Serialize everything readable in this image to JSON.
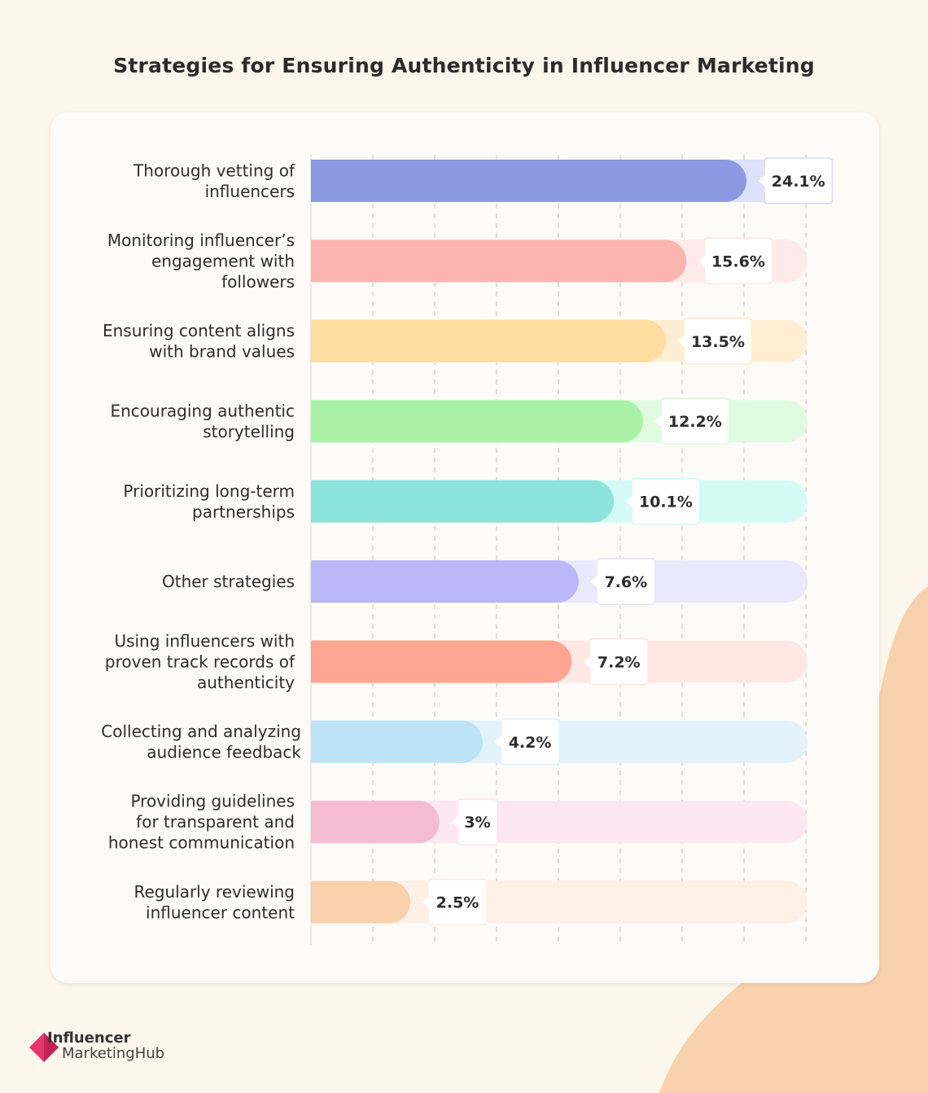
{
  "chart_data": {
    "type": "bar",
    "orientation": "horizontal",
    "title": "Strategies for Ensuring Authenticity in Influencer Marketing",
    "categories": [
      "Thorough vetting of influencers",
      "Monitoring influencer’s engagement with followers",
      "Ensuring content aligns with brand values",
      "Encouraging authentic storytelling",
      "Prioritizing long-term partnerships",
      "Other strategies",
      "Using influencers with proven track records of authenticity",
      "Collecting and analyzing audience feedback",
      "Providing guidelines for transparent and honest communication",
      "Regularly reviewing influencer content"
    ],
    "category_lines": [
      [
        "Thorough vetting of",
        "influencers"
      ],
      [
        "Monitoring influencer’s",
        "engagement with",
        "followers"
      ],
      [
        "Ensuring content aligns",
        "with brand values"
      ],
      [
        "Encouraging authentic",
        "storytelling"
      ],
      [
        "Prioritizing long-term",
        "partnerships"
      ],
      [
        "Other strategies"
      ],
      [
        "Using influencers with",
        "proven track records of",
        "authenticity"
      ],
      [
        "Collecting and analyzing",
        "audience feedback"
      ],
      [
        "Providing guidelines",
        "for transparent and",
        "honest communication"
      ],
      [
        "Regularly reviewing",
        "influencer content"
      ]
    ],
    "values": [
      24.1,
      15.6,
      13.5,
      12.2,
      10.1,
      7.6,
      7.2,
      4.2,
      3,
      2.5
    ],
    "value_labels": [
      "24.1%",
      "15.6%",
      "13.5%",
      "12.2%",
      "10.1%",
      "7.6%",
      "7.2%",
      "4.2%",
      "3%",
      "2.5%"
    ],
    "unit": "%",
    "grid": "vertical dashed",
    "legend": "none",
    "bar_colors": [
      "#8b9ae3",
      "#fbb4ae",
      "#ffdca0",
      "#aaf2a6",
      "#8ce3db",
      "#bab8f8",
      "#ffa592",
      "#bce4f6",
      "#f4bcd1",
      "#f8d0ab"
    ],
    "track_colors": [
      "#dde1fb",
      "#ffeaea",
      "#ffeed3",
      "#e0fbdf",
      "#d5fbf7",
      "#e9e8fd",
      "#ffe8e3",
      "#e2f3fc",
      "#fde7f0",
      "#fef0e5"
    ]
  },
  "brand": {
    "line1": "Influencer",
    "line2": "MarketingHub",
    "logo_color": "#e8356d"
  },
  "colors": {
    "background": "#fdf6ec",
    "blob": "#f8d1ad"
  }
}
